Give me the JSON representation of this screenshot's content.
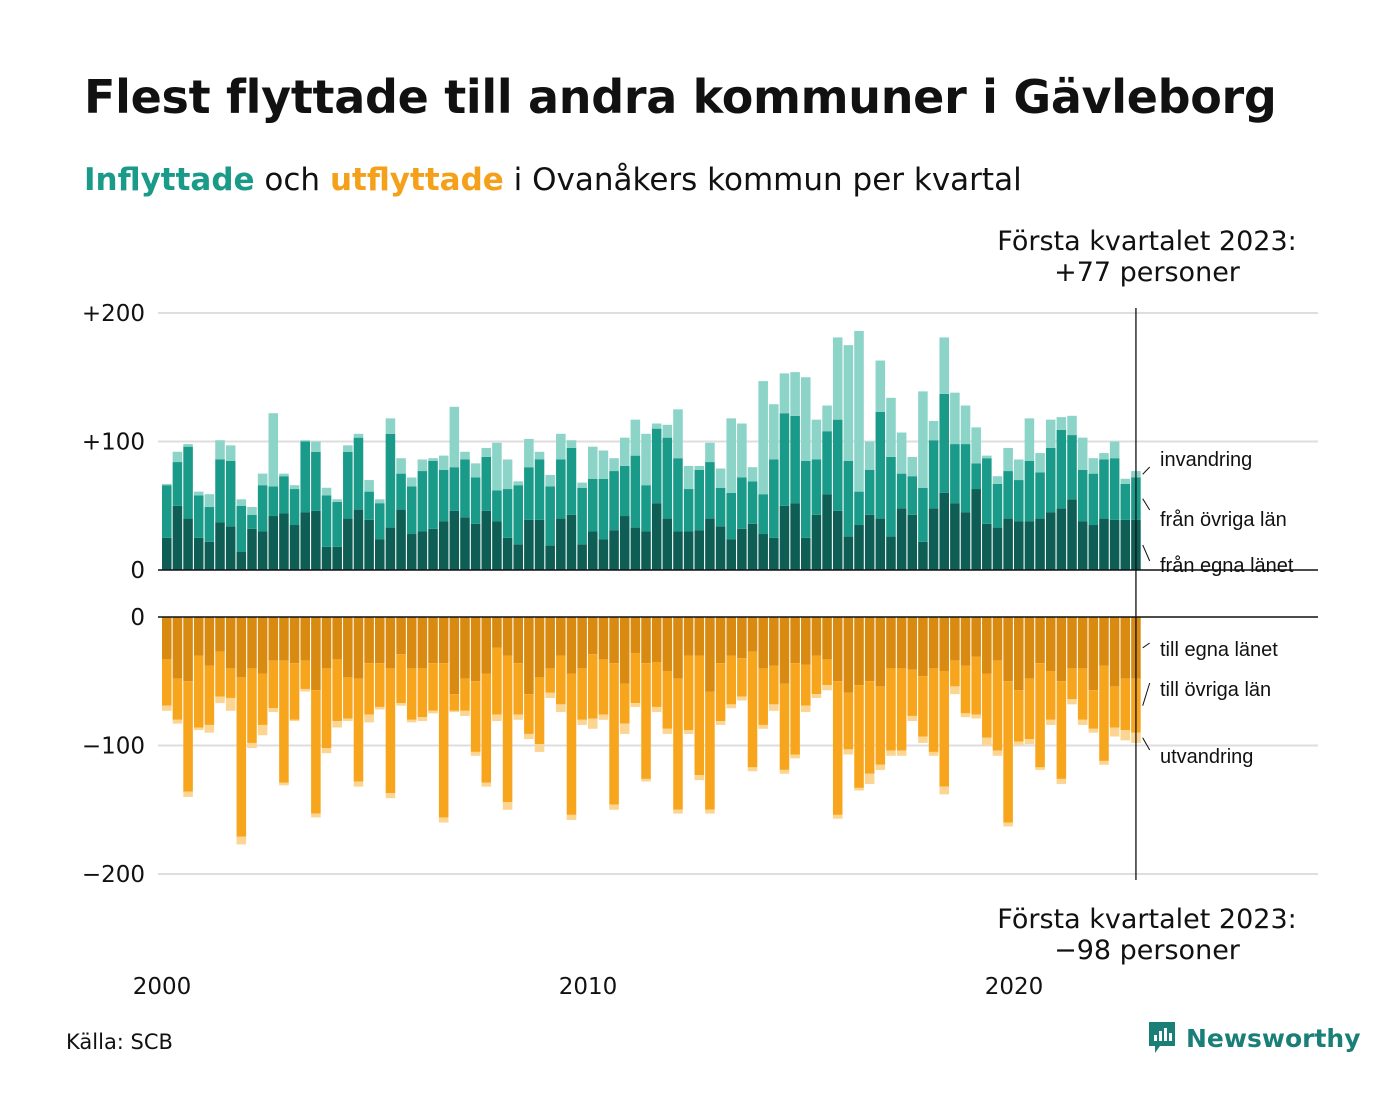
{
  "header": {
    "title": "Flest flyttade till andra kommuner i Gävleborg",
    "subtitle_in": "Inflyttade",
    "subtitle_and": " och ",
    "subtitle_out": "utflyttade",
    "subtitle_rest": " i Ovanåkers kommun per kvartal"
  },
  "footer": {
    "source": "Källa: SCB",
    "brand": "Newsworthy"
  },
  "colors": {
    "in_own": "#0e5e55",
    "in_other": "#1a9a88",
    "in_immig": "#8cd4c8",
    "out_own": "#d98a10",
    "out_other": "#f8a51e",
    "out_emig": "#fbd591",
    "grid": "#dedede",
    "axis": "#111111"
  },
  "chart_data": {
    "type": "bar",
    "stacked": true,
    "x_start_year": 2000,
    "x_unit": "quarter",
    "x_ticks": [
      "2000",
      "2010",
      "2020"
    ],
    "y_ticks_in": [
      "+200",
      "+100",
      "0"
    ],
    "y_ticks_out": [
      "0",
      "−100",
      "−200"
    ],
    "ylim_in": [
      0,
      200
    ],
    "ylim_out": [
      -200,
      0
    ],
    "grid": true,
    "annotation_in": {
      "line1": "Första kvartalet 2023:",
      "line2": "+77 personer"
    },
    "annotation_out": {
      "line1": "Första kvartalet 2023:",
      "line2": "−98 personer"
    },
    "series_in": [
      {
        "name": "från egna länet",
        "values": [
          25,
          50,
          40,
          25,
          22,
          37,
          34,
          14,
          32,
          30,
          42,
          44,
          35,
          45,
          46,
          18,
          18,
          40,
          47,
          39,
          24,
          33,
          47,
          28,
          30,
          32,
          38,
          46,
          41,
          36,
          46,
          38,
          25,
          20,
          39,
          39,
          19,
          40,
          43,
          20,
          30,
          24,
          31,
          42,
          33,
          30,
          52,
          40,
          30,
          30,
          31,
          40,
          34,
          24,
          32,
          36,
          28,
          25,
          50,
          52,
          25,
          43,
          59,
          46,
          26,
          35,
          43,
          40,
          26,
          48,
          43,
          22,
          48,
          60,
          52,
          45,
          63,
          36,
          33,
          40,
          38,
          38,
          40,
          45,
          48,
          55,
          38,
          35,
          40,
          39,
          39,
          39
        ]
      },
      {
        "name": "från övriga län",
        "values": [
          41,
          34,
          56,
          33,
          27,
          49,
          51,
          36,
          11,
          36,
          23,
          29,
          28,
          55,
          46,
          40,
          35,
          52,
          56,
          22,
          28,
          73,
          28,
          37,
          47,
          53,
          40,
          34,
          45,
          36,
          42,
          24,
          38,
          46,
          41,
          47,
          46,
          46,
          52,
          44,
          41,
          47,
          46,
          39,
          56,
          36,
          58,
          63,
          57,
          33,
          47,
          44,
          30,
          36,
          40,
          33,
          31,
          61,
          72,
          68,
          60,
          43,
          49,
          71,
          59,
          26,
          35,
          83,
          62,
          27,
          30,
          42,
          53,
          77,
          46,
          53,
          20,
          51,
          34,
          37,
          32,
          47,
          36,
          50,
          61,
          50,
          40,
          40,
          46,
          48,
          28,
          33
        ]
      },
      {
        "name": "invandring",
        "values": [
          1,
          8,
          2,
          3,
          10,
          15,
          12,
          5,
          6,
          9,
          57,
          2,
          3,
          1,
          8,
          6,
          2,
          5,
          3,
          9,
          3,
          12,
          12,
          7,
          9,
          2,
          11,
          47,
          6,
          11,
          7,
          37,
          23,
          3,
          22,
          6,
          9,
          20,
          6,
          4,
          25,
          22,
          10,
          22,
          28,
          40,
          4,
          10,
          38,
          18,
          3,
          15,
          15,
          58,
          42,
          11,
          88,
          43,
          31,
          34,
          65,
          31,
          20,
          64,
          90,
          125,
          22,
          40,
          46,
          32,
          15,
          75,
          15,
          44,
          40,
          30,
          28,
          2,
          6,
          18,
          16,
          33,
          15,
          22,
          10,
          15,
          25,
          12,
          5,
          13,
          4,
          5
        ]
      }
    ],
    "series_out": [
      {
        "name": "till egna länet",
        "values": [
          33,
          48,
          50,
          30,
          38,
          27,
          40,
          47,
          40,
          44,
          34,
          34,
          36,
          34,
          57,
          40,
          33,
          47,
          48,
          36,
          36,
          40,
          29,
          40,
          40,
          36,
          36,
          60,
          48,
          50,
          44,
          24,
          30,
          36,
          60,
          47,
          40,
          30,
          44,
          40,
          29,
          33,
          36,
          52,
          28,
          36,
          35,
          42,
          48,
          30,
          30,
          58,
          36,
          30,
          32,
          27,
          40,
          38,
          52,
          36,
          37,
          30,
          33,
          50,
          59,
          53,
          50,
          54,
          40,
          40,
          41,
          46,
          40,
          42,
          34,
          38,
          31,
          44,
          34,
          50,
          57,
          48,
          36,
          42,
          50,
          40,
          40,
          57,
          38,
          54,
          48,
          48
        ]
      },
      {
        "name": "till övriga län",
        "values": [
          36,
          32,
          86,
          56,
          46,
          35,
          23,
          124,
          58,
          40,
          37,
          95,
          44,
          22,
          96,
          62,
          48,
          32,
          80,
          40,
          34,
          97,
          38,
          40,
          38,
          37,
          120,
          13,
          25,
          55,
          85,
          52,
          114,
          40,
          31,
          52,
          19,
          38,
          110,
          40,
          50,
          43,
          110,
          31,
          39,
          90,
          35,
          45,
          102,
          58,
          93,
          92,
          45,
          38,
          30,
          90,
          44,
          30,
          67,
          71,
          32,
          30,
          20,
          104,
          44,
          80,
          72,
          61,
          64,
          64,
          36,
          47,
          65,
          90,
          20,
          37,
          45,
          50,
          70,
          110,
          40,
          47,
          81,
          38,
          76,
          24,
          40,
          30,
          74,
          32,
          40,
          42
        ]
      },
      {
        "name": "utvandring",
        "values": [
          4,
          3,
          4,
          2,
          6,
          5,
          10,
          6,
          4,
          8,
          3,
          2,
          1,
          2,
          3,
          4,
          5,
          2,
          4,
          6,
          2,
          4,
          2,
          2,
          3,
          2,
          4,
          1,
          4,
          3,
          3,
          5,
          6,
          4,
          4,
          6,
          4,
          6,
          4,
          4,
          8,
          4,
          4,
          8,
          3,
          2,
          4,
          4,
          3,
          3,
          4,
          3,
          3,
          3,
          3,
          3,
          3,
          5,
          3,
          3,
          5,
          3,
          4,
          3,
          4,
          2,
          8,
          4,
          4,
          4,
          4,
          5,
          3,
          6,
          6,
          3,
          3,
          6,
          4,
          3,
          3,
          4,
          2,
          4,
          4,
          4,
          4,
          3,
          3,
          7,
          8,
          8
        ]
      }
    ]
  }
}
